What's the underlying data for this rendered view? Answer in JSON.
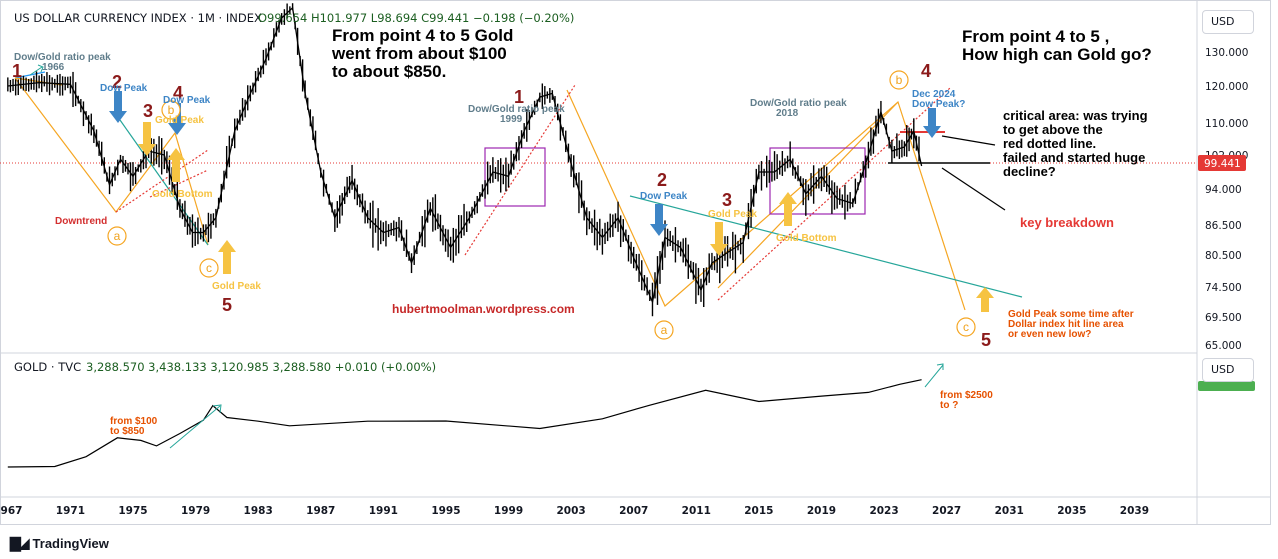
{
  "header": {
    "symbol": "US DOLLAR CURRENCY INDEX · 1M · INDEX",
    "ohlc": "O99.654  H101.977  L98.694  C99.441  −0.198 (−0.20%)",
    "currency_top": "USD",
    "currency_bottom": "USD",
    "last_price": "99.441"
  },
  "gold_header": {
    "symbol": "GOLD · TVC",
    "values": "3,288.570  3,438.133  3,120.985  3,288.580  +0.010 (+0.00%)"
  },
  "branding": {
    "tradingview": "TradingView"
  },
  "notes": {
    "gold_move_1": "From point 4 to 5 Gold",
    "gold_move_2": "went from about $100",
    "gold_move_3": "to about $850.",
    "question_1": "From point 4 to 5 ,",
    "question_2": "How high can Gold go?",
    "critical_1": "critical area: was trying",
    "critical_2": "to get above the",
    "critical_3": "red dotted line.",
    "critical_4": "failed and started huge",
    "critical_5": "decline?",
    "key_breakdown": "key breakdown",
    "website": "hubertmoolman.wordpress.com",
    "gold_peak_future_1": "Gold Peak some time after",
    "gold_peak_future_2": "Dollar index hit line area",
    "gold_peak_future_3": "or even new low?",
    "gold_from_100_1": "from $100",
    "gold_from_100_2": "to $850",
    "gold_from_2500_1": "from $2500",
    "gold_from_2500_2": "to ?",
    "downtrend": "Downtrend"
  },
  "labels": {
    "dow_gold_1966_a": "Dow/Gold ratio peak",
    "dow_gold_1966_b": "1966",
    "dow_gold_1999_a": "Dow/Gold ratio peak",
    "dow_gold_1999_b": "1999",
    "dow_gold_2018_a": "Dow/Gold ratio peak",
    "dow_gold_2018_b": "2018",
    "dow_peak_70s_2": "Dow Peak",
    "dow_peak_70s_4": "Dow Peak",
    "gold_peak_70s_3": "Gold Peak",
    "gold_bottom_70s": "Gold Bottom",
    "gold_peak_1980": "Gold Peak",
    "dow_peak_2007": "Dow Peak",
    "gold_peak_2011": "Gold Peak",
    "gold_bottom_2015": "Gold Bottom",
    "dec2024_a": "Dec 2024",
    "dec2024_b": "Dow Peak?"
  },
  "waves": {
    "w1_left": "1",
    "w2_left": "2",
    "w3_left": "3",
    "w4_left": "4",
    "w5_left": "5",
    "w1_right": "1",
    "w2_right": "2",
    "w3_right": "3",
    "w4_right": "4",
    "w5_right": "5",
    "a_left": "a",
    "b_left": "b",
    "c_left": "c",
    "a_right": "a",
    "b_right": "b",
    "c_right": "c"
  },
  "colors": {
    "candle": "#000000",
    "wave_line": "#f5a623",
    "trend_line": "#26a69a",
    "dotted_red": "#e53935",
    "box": "#9c27b0",
    "arrow_blue": "#3d85c6",
    "arrow_yellow": "#f6c342",
    "price_tag": "#e53935",
    "gold_tag": "#4caf50"
  },
  "chart_data": [
    {
      "type": "line",
      "title": "US DOLLAR CURRENCY INDEX · 1M · INDEX",
      "ylabel": "",
      "y_ticks": [
        65.0,
        69.5,
        74.5,
        80.5,
        86.5,
        94.0,
        102.0,
        110.0,
        120.0,
        130.0
      ],
      "y_tick_labels": [
        "65.000",
        "69.500",
        "74.500",
        "80.500",
        "86.500",
        "94.000",
        "102.000",
        "110.000",
        "120.000",
        "130.000"
      ],
      "xlim": [
        1966.5,
        2043
      ],
      "x_ticks": [
        1967,
        1971,
        1975,
        1979,
        1983,
        1987,
        1991,
        1995,
        1999,
        2003,
        2007,
        2011,
        2015,
        2019,
        2023,
        2027,
        2031,
        2035,
        2039
      ],
      "x": [
        1967.0,
        1969.0,
        1971.0,
        1972.5,
        1973.5,
        1974.2,
        1975.0,
        1976.0,
        1977.0,
        1978.0,
        1978.8,
        1979.5,
        1980.3,
        1981.5,
        1982.5,
        1983.5,
        1984.5,
        1985.2,
        1986.0,
        1987.0,
        1987.9,
        1989.0,
        1990.0,
        1991.0,
        1992.0,
        1992.8,
        1994.0,
        1995.3,
        1996.5,
        1998.0,
        1999.0,
        2000.0,
        2001.0,
        2001.8,
        2003.0,
        2004.0,
        2005.0,
        2006.0,
        2007.0,
        2008.2,
        2009.0,
        2010.0,
        2011.3,
        2012.0,
        2013.0,
        2014.0,
        2015.0,
        2016.0,
        2017.0,
        2018.0,
        2019.0,
        2020.0,
        2021.0,
        2022.0,
        2022.8,
        2023.5,
        2024.3,
        2024.9,
        2025.4
      ],
      "values": [
        120.0,
        121.0,
        120.5,
        108.0,
        95.0,
        101.0,
        97.0,
        103.0,
        102.0,
        90.0,
        85.0,
        85.0,
        88.0,
        108.0,
        118.0,
        128.0,
        140.0,
        143.0,
        118.0,
        98.0,
        88.0,
        96.0,
        88.0,
        85.0,
        86.0,
        79.0,
        90.0,
        82.0,
        88.0,
        98.0,
        97.0,
        108.0,
        117.0,
        118.0,
        100.0,
        88.0,
        84.0,
        88.0,
        80.0,
        72.0,
        84.0,
        82.0,
        74.0,
        79.0,
        81.0,
        83.0,
        98.0,
        98.0,
        101.0,
        93.0,
        97.0,
        92.0,
        91.0,
        102.0,
        113.0,
        103.0,
        104.0,
        108.0,
        99.4
      ]
    },
    {
      "type": "line",
      "title": "GOLD · TVC",
      "x": [
        1967.0,
        1970.0,
        1972.0,
        1974.0,
        1975.5,
        1976.5,
        1978.0,
        1979.5,
        1980.1,
        1981.0,
        1983.0,
        1985.0,
        1990.0,
        1995.0,
        2001.0,
        2005.0,
        2008.0,
        2011.6,
        2015.0,
        2019.0,
        2022.0,
        2024.0,
        2025.4
      ],
      "values": [
        35,
        36,
        60,
        160,
        140,
        105,
        200,
        400,
        850,
        460,
        380,
        300,
        380,
        385,
        260,
        430,
        870,
        1900,
        1060,
        1400,
        1700,
        2600,
        3288
      ]
    }
  ]
}
